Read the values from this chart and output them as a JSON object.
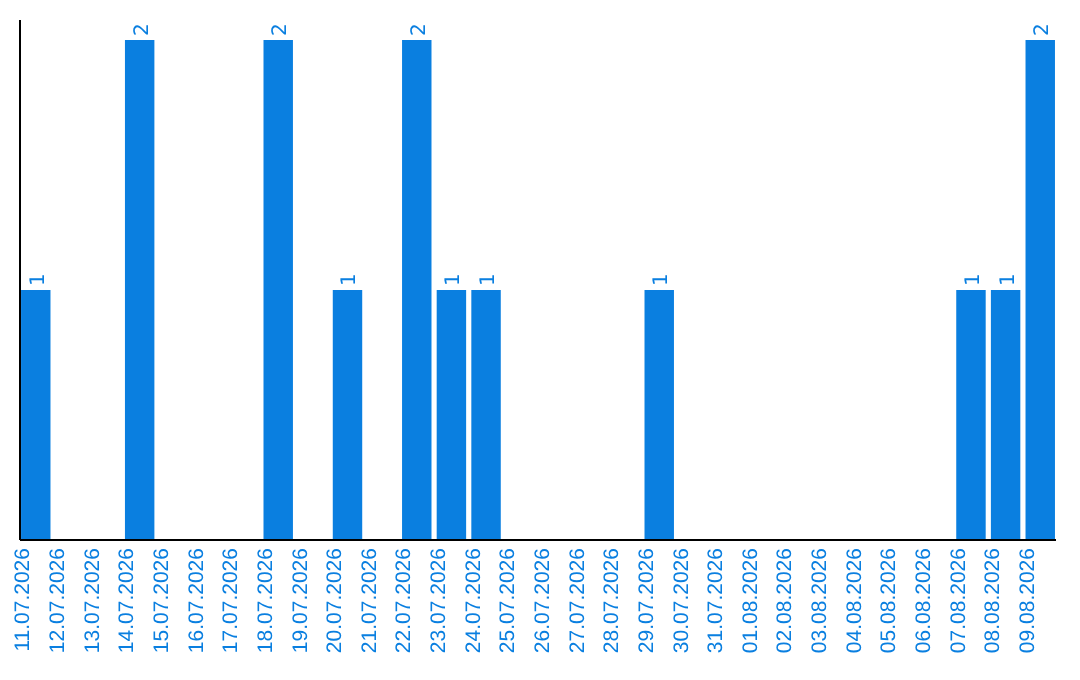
{
  "chart_data": {
    "type": "bar",
    "categories": [
      "11.07.2026",
      "12.07.2026",
      "13.07.2026",
      "14.07.2026",
      "15.07.2026",
      "16.07.2026",
      "17.07.2026",
      "18.07.2026",
      "19.07.2026",
      "20.07.2026",
      "21.07.2026",
      "22.07.2026",
      "23.07.2026",
      "24.07.2026",
      "25.07.2026",
      "26.07.2026",
      "27.07.2026",
      "28.07.2026",
      "29.07.2026",
      "30.07.2026",
      "31.07.2026",
      "01.08.2026",
      "02.08.2026",
      "03.08.2026",
      "04.08.2026",
      "05.08.2026",
      "06.08.2026",
      "07.08.2026",
      "08.08.2026",
      "09.08.2026"
    ],
    "values": [
      1,
      0,
      0,
      2,
      0,
      0,
      0,
      2,
      0,
      1,
      0,
      2,
      1,
      1,
      0,
      0,
      0,
      0,
      1,
      0,
      0,
      0,
      0,
      0,
      0,
      0,
      0,
      1,
      1,
      2
    ],
    "value_labels": [
      "1",
      null,
      null,
      "2",
      null,
      null,
      null,
      "2",
      null,
      "1",
      null,
      "2",
      "1",
      "1",
      null,
      null,
      null,
      null,
      "1",
      null,
      null,
      null,
      null,
      null,
      null,
      null,
      null,
      "1",
      "1",
      "2"
    ],
    "color": "#0a7fe0",
    "ylim": [
      0,
      2
    ],
    "tick_labels": "x"
  }
}
